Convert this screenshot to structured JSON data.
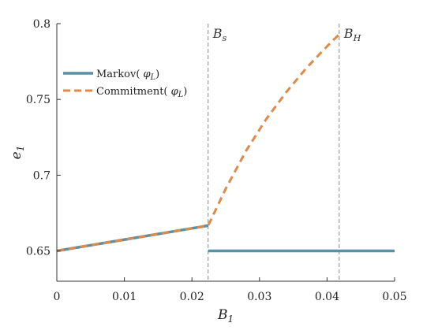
{
  "chart_data": {
    "type": "line",
    "xlabel": "B",
    "xlabel_sub": "1",
    "ylabel": "e",
    "ylabel_sub": "1",
    "xlim": [
      0,
      0.05
    ],
    "ylim": [
      0.63,
      0.8
    ],
    "x_ticks": [
      0,
      0.01,
      0.02,
      0.03,
      0.04,
      0.05
    ],
    "x_tick_labels": [
      "0",
      "0.01",
      "0.02",
      "0.03",
      "0.04",
      "0.05"
    ],
    "y_ticks": [
      0.65,
      0.7,
      0.75,
      0.8
    ],
    "y_tick_labels": [
      "0.65",
      "0.7",
      "0.75",
      "0.8"
    ],
    "grid": false,
    "legend_position": "upper-left",
    "colors": {
      "markov": "#5b8fa3",
      "commitment": "#dd8a4a",
      "guide": "#888888",
      "axis": "#333333"
    },
    "series": [
      {
        "name": "Markov( φL)",
        "name_prefix": "Markov( ",
        "name_var": "φ",
        "name_sub": "L",
        "name_suffix": ")",
        "style": "solid",
        "segments": [
          {
            "x": [
              0,
              0.0224
            ],
            "y": [
              0.65,
              0.6667
            ]
          },
          {
            "x": [
              0.0224,
              0.05
            ],
            "y": [
              0.65,
              0.65
            ]
          }
        ]
      },
      {
        "name": "Commitment( φL)",
        "name_prefix": "Commitment( ",
        "name_var": "φ",
        "name_sub": "L",
        "name_suffix": ")",
        "style": "dashed",
        "segments": [
          {
            "x": [
              0,
              0.0224,
              0.025,
              0.028,
              0.031,
              0.034,
              0.037,
              0.04,
              0.0418
            ],
            "y": [
              0.65,
              0.6667,
              0.691,
              0.716,
              0.737,
              0.755,
              0.771,
              0.785,
              0.793
            ]
          }
        ]
      }
    ],
    "annotations": [
      {
        "label": "B",
        "sub": "s",
        "x": 0.0224
      },
      {
        "label": "B",
        "sub": "H",
        "x": 0.0418
      }
    ]
  }
}
